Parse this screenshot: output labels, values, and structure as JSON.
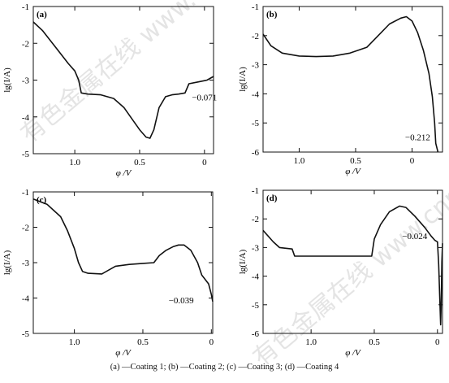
{
  "caption": "(a) —Coating 1; (b) —Coating 2; (c) —Coating 3; (d) —Coating 4",
  "watermark": {
    "top_left": "有色金属在线 www.cnnmol.com",
    "bottom_right": "有色金属在线 www.cnnmol.com"
  },
  "chart_data": [
    {
      "type": "line",
      "panel_label": "(a)",
      "xlabel": "φ /V",
      "ylabel": "lg(I/A)",
      "xlim": [
        1.32,
        -0.07
      ],
      "ylim": [
        -5,
        -1
      ],
      "x_ticks": [
        {
          "v": 1.0,
          "label": "1.0"
        },
        {
          "v": 0.5,
          "label": "0.5"
        },
        {
          "v": 0,
          "label": "0"
        }
      ],
      "y_ticks": [
        {
          "v": -1,
          "label": "-1"
        },
        {
          "v": -2,
          "label": "-2"
        },
        {
          "v": -3,
          "label": "-3"
        },
        {
          "v": -4,
          "label": "-4"
        },
        {
          "v": -5,
          "label": "-5"
        }
      ],
      "series": [
        {
          "points": [
            [
              1.32,
              -1.42
            ],
            [
              1.25,
              -1.65
            ],
            [
              1.15,
              -2.1
            ],
            [
              1.05,
              -2.55
            ],
            [
              1.0,
              -2.75
            ],
            [
              0.97,
              -3.0
            ],
            [
              0.95,
              -3.35
            ],
            [
              0.9,
              -3.38
            ],
            [
              0.8,
              -3.4
            ],
            [
              0.7,
              -3.5
            ],
            [
              0.62,
              -3.75
            ],
            [
              0.55,
              -4.1
            ],
            [
              0.5,
              -4.35
            ],
            [
              0.45,
              -4.55
            ],
            [
              0.42,
              -4.58
            ],
            [
              0.39,
              -4.35
            ],
            [
              0.35,
              -3.75
            ],
            [
              0.3,
              -3.45
            ],
            [
              0.25,
              -3.4
            ],
            [
              0.2,
              -3.38
            ],
            [
              0.15,
              -3.35
            ],
            [
              0.12,
              -3.1
            ],
            [
              0.05,
              -3.05
            ],
            [
              -0.02,
              -3.0
            ],
            [
              -0.07,
              -2.9
            ]
          ]
        }
      ],
      "annotation": {
        "text": "−0.071",
        "x": 0.0,
        "y": -3.55
      }
    },
    {
      "type": "line",
      "panel_label": "(b)",
      "xlabel": "φ /V",
      "ylabel": "lg(I/A)",
      "xlim": [
        1.32,
        -0.27
      ],
      "ylim": [
        -6,
        -1
      ],
      "x_ticks": [
        {
          "v": 1.0,
          "label": "1.0"
        },
        {
          "v": 0.5,
          "label": "0.5"
        },
        {
          "v": 0,
          "label": "0"
        }
      ],
      "y_ticks": [
        {
          "v": -1,
          "label": "-1"
        },
        {
          "v": -2,
          "label": "-2"
        },
        {
          "v": -3,
          "label": "-3"
        },
        {
          "v": -4,
          "label": "-4"
        },
        {
          "v": -5,
          "label": "-5"
        },
        {
          "v": -6,
          "label": "-6"
        }
      ],
      "series": [
        {
          "points": [
            [
              1.32,
              -1.95
            ],
            [
              1.25,
              -2.35
            ],
            [
              1.15,
              -2.6
            ],
            [
              1.0,
              -2.7
            ],
            [
              0.85,
              -2.72
            ],
            [
              0.7,
              -2.7
            ],
            [
              0.55,
              -2.6
            ],
            [
              0.4,
              -2.4
            ],
            [
              0.3,
              -2.0
            ],
            [
              0.2,
              -1.6
            ],
            [
              0.1,
              -1.4
            ],
            [
              0.05,
              -1.35
            ],
            [
              0.0,
              -1.5
            ],
            [
              -0.05,
              -1.9
            ],
            [
              -0.1,
              -2.5
            ],
            [
              -0.15,
              -3.3
            ],
            [
              -0.18,
              -4.1
            ],
            [
              -0.2,
              -5.0
            ],
            [
              -0.21,
              -5.7
            ],
            [
              -0.23,
              -6.0
            ]
          ]
        }
      ],
      "annotation": {
        "text": "−0.212",
        "x": -0.05,
        "y": -5.6
      }
    },
    {
      "type": "line",
      "panel_label": "(c)",
      "xlabel": "φ /V",
      "ylabel": "lg(I/A)",
      "xlim": [
        1.3,
        -0.01
      ],
      "ylim": [
        -5,
        -1
      ],
      "x_ticks": [
        {
          "v": 1.0,
          "label": "1.0"
        },
        {
          "v": 0.5,
          "label": "0.5"
        },
        {
          "v": 0,
          "label": "0"
        }
      ],
      "y_ticks": [
        {
          "v": -1,
          "label": "-1"
        },
        {
          "v": -2,
          "label": "-2"
        },
        {
          "v": -3,
          "label": "-3"
        },
        {
          "v": -4,
          "label": "-4"
        },
        {
          "v": -5,
          "label": "-5"
        }
      ],
      "series": [
        {
          "points": [
            [
              1.3,
              -1.2
            ],
            [
              1.2,
              -1.35
            ],
            [
              1.1,
              -1.7
            ],
            [
              1.05,
              -2.1
            ],
            [
              1.0,
              -2.6
            ],
            [
              0.97,
              -3.0
            ],
            [
              0.94,
              -3.25
            ],
            [
              0.9,
              -3.3
            ],
            [
              0.8,
              -3.32
            ],
            [
              0.7,
              -3.1
            ],
            [
              0.6,
              -3.05
            ],
            [
              0.5,
              -3.02
            ],
            [
              0.42,
              -3.0
            ],
            [
              0.38,
              -2.8
            ],
            [
              0.33,
              -2.65
            ],
            [
              0.28,
              -2.55
            ],
            [
              0.24,
              -2.5
            ],
            [
              0.2,
              -2.5
            ],
            [
              0.15,
              -2.65
            ],
            [
              0.1,
              -3.0
            ],
            [
              0.07,
              -3.35
            ],
            [
              0.05,
              -3.45
            ],
            [
              0.02,
              -3.6
            ],
            [
              0.0,
              -3.9
            ],
            [
              -0.01,
              -4.1
            ]
          ]
        }
      ],
      "annotation": {
        "text": "−0.039",
        "x": 0.22,
        "y": -4.15
      }
    },
    {
      "type": "line",
      "panel_label": "(d)",
      "xlabel": "φ /V",
      "ylabel": "lg(I/A)",
      "xlim": [
        1.38,
        -0.04
      ],
      "ylim": [
        -6,
        -1
      ],
      "x_ticks": [
        {
          "v": 1.0,
          "label": "1.0"
        },
        {
          "v": 0.5,
          "label": "0.5"
        },
        {
          "v": 0,
          "label": "0"
        }
      ],
      "y_ticks": [
        {
          "v": -1,
          "label": "-1"
        },
        {
          "v": -2,
          "label": "-2"
        },
        {
          "v": -3,
          "label": "-3"
        },
        {
          "v": -4,
          "label": "-4"
        },
        {
          "v": -5,
          "label": "-5"
        },
        {
          "v": -6,
          "label": "-6"
        }
      ],
      "series": [
        {
          "points": [
            [
              1.38,
              -2.4
            ],
            [
              1.3,
              -2.8
            ],
            [
              1.25,
              -3.0
            ],
            [
              1.15,
              -3.05
            ],
            [
              1.13,
              -3.3
            ],
            [
              1.0,
              -3.3
            ],
            [
              0.8,
              -3.3
            ],
            [
              0.6,
              -3.3
            ],
            [
              0.52,
              -3.3
            ],
            [
              0.5,
              -2.7
            ],
            [
              0.45,
              -2.2
            ],
            [
              0.38,
              -1.75
            ],
            [
              0.3,
              -1.55
            ],
            [
              0.25,
              -1.6
            ],
            [
              0.18,
              -1.9
            ],
            [
              0.1,
              -2.3
            ],
            [
              0.05,
              -2.6
            ],
            [
              0.02,
              -2.75
            ],
            [
              0.0,
              -2.8
            ],
            [
              -0.01,
              -3.6
            ],
            [
              -0.02,
              -5.0
            ],
            [
              -0.025,
              -5.7
            ],
            [
              -0.03,
              -5.0
            ],
            [
              -0.035,
              -3.5
            ],
            [
              -0.04,
              -2.85
            ]
          ]
        }
      ],
      "annotation": {
        "text": "−0.024",
        "x": 0.18,
        "y": -2.7
      }
    }
  ]
}
